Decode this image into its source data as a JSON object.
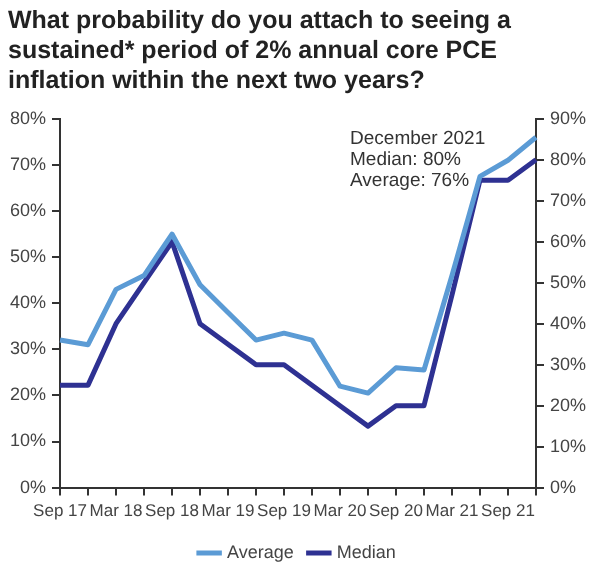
{
  "chart_data": {
    "type": "line",
    "title": "What probability do you attach to seeing a sustained* period of 2% annual core PCE inflation within the next two years?",
    "categories": [
      "Sep 17",
      null,
      "Mar 18",
      null,
      "Sep 18",
      null,
      "Mar 19",
      null,
      "Sep 19",
      null,
      "Mar 20",
      null,
      "Sep 20",
      null,
      "Mar 21",
      null,
      "Sep 21",
      null
    ],
    "series": [
      {
        "name": "Average",
        "color": "#5b9bd5",
        "values": [
          32,
          31,
          43,
          46,
          55,
          44,
          38,
          32,
          33.5,
          32,
          22,
          20.5,
          26,
          25.5,
          46,
          67.5,
          71,
          76
        ]
      },
      {
        "name": "Median",
        "color": "#2e3192",
        "axis": "y2",
        "values": [
          25,
          25,
          40,
          50,
          60,
          40,
          35,
          30,
          30,
          25,
          20,
          15,
          20,
          20,
          47,
          75,
          75,
          80
        ]
      }
    ],
    "ylim": [
      0,
      80
    ],
    "yticks": [
      {
        "value": 0,
        "label": "0%"
      },
      {
        "value": 10,
        "label": "10%"
      },
      {
        "value": 20,
        "label": "20%"
      },
      {
        "value": 30,
        "label": "30%"
      },
      {
        "value": 40,
        "label": "40%"
      },
      {
        "value": 50,
        "label": "50%"
      },
      {
        "value": 60,
        "label": "60%"
      },
      {
        "value": 70,
        "label": "70%"
      },
      {
        "value": 80,
        "label": "80%"
      }
    ],
    "y2lim": [
      0,
      90
    ],
    "y2ticks": [
      {
        "value": 0,
        "label": "0%"
      },
      {
        "value": 10,
        "label": "10%"
      },
      {
        "value": 20,
        "label": "20%"
      },
      {
        "value": 30,
        "label": "30%"
      },
      {
        "value": 40,
        "label": "40%"
      },
      {
        "value": 50,
        "label": "50%"
      },
      {
        "value": 60,
        "label": "60%"
      },
      {
        "value": 70,
        "label": "70%"
      },
      {
        "value": 80,
        "label": "80%"
      },
      {
        "value": 90,
        "label": "90%"
      }
    ],
    "annotations": [
      "December 2021\nMedian: 80%\nAverage: 76%"
    ],
    "grid": false,
    "legend": "bottom",
    "marker": "none",
    "line_style": "solid"
  }
}
